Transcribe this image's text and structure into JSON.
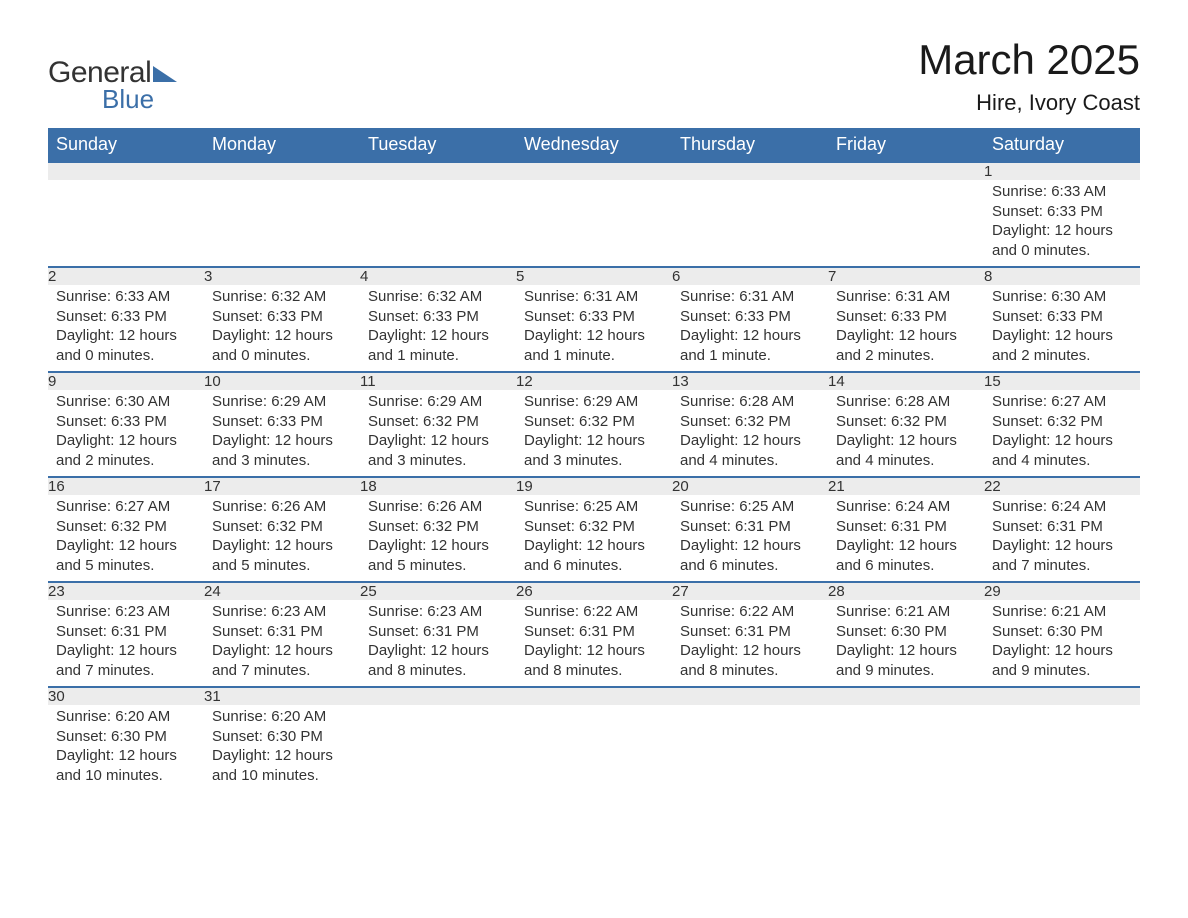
{
  "logo": {
    "word1": "General",
    "word2": "Blue",
    "text_color": "#333333",
    "accent_color": "#3b6fa8"
  },
  "title": "March 2025",
  "location": "Hire, Ivory Coast",
  "colors": {
    "header_bg": "#3b6fa8",
    "header_text": "#ffffff",
    "daynum_bg": "#ececec",
    "daynum_border": "#3b6fa8",
    "body_text": "#333333",
    "page_bg": "#ffffff"
  },
  "typography": {
    "title_fontsize": 42,
    "location_fontsize": 22,
    "header_fontsize": 18,
    "daynum_fontsize": 18,
    "body_fontsize": 15
  },
  "columns": [
    "Sunday",
    "Monday",
    "Tuesday",
    "Wednesday",
    "Thursday",
    "Friday",
    "Saturday"
  ],
  "weeks": [
    [
      null,
      null,
      null,
      null,
      null,
      null,
      {
        "n": "1",
        "sunrise": "6:33 AM",
        "sunset": "6:33 PM",
        "daylight": "12 hours and 0 minutes."
      }
    ],
    [
      {
        "n": "2",
        "sunrise": "6:33 AM",
        "sunset": "6:33 PM",
        "daylight": "12 hours and 0 minutes."
      },
      {
        "n": "3",
        "sunrise": "6:32 AM",
        "sunset": "6:33 PM",
        "daylight": "12 hours and 0 minutes."
      },
      {
        "n": "4",
        "sunrise": "6:32 AM",
        "sunset": "6:33 PM",
        "daylight": "12 hours and 1 minute."
      },
      {
        "n": "5",
        "sunrise": "6:31 AM",
        "sunset": "6:33 PM",
        "daylight": "12 hours and 1 minute."
      },
      {
        "n": "6",
        "sunrise": "6:31 AM",
        "sunset": "6:33 PM",
        "daylight": "12 hours and 1 minute."
      },
      {
        "n": "7",
        "sunrise": "6:31 AM",
        "sunset": "6:33 PM",
        "daylight": "12 hours and 2 minutes."
      },
      {
        "n": "8",
        "sunrise": "6:30 AM",
        "sunset": "6:33 PM",
        "daylight": "12 hours and 2 minutes."
      }
    ],
    [
      {
        "n": "9",
        "sunrise": "6:30 AM",
        "sunset": "6:33 PM",
        "daylight": "12 hours and 2 minutes."
      },
      {
        "n": "10",
        "sunrise": "6:29 AM",
        "sunset": "6:33 PM",
        "daylight": "12 hours and 3 minutes."
      },
      {
        "n": "11",
        "sunrise": "6:29 AM",
        "sunset": "6:32 PM",
        "daylight": "12 hours and 3 minutes."
      },
      {
        "n": "12",
        "sunrise": "6:29 AM",
        "sunset": "6:32 PM",
        "daylight": "12 hours and 3 minutes."
      },
      {
        "n": "13",
        "sunrise": "6:28 AM",
        "sunset": "6:32 PM",
        "daylight": "12 hours and 4 minutes."
      },
      {
        "n": "14",
        "sunrise": "6:28 AM",
        "sunset": "6:32 PM",
        "daylight": "12 hours and 4 minutes."
      },
      {
        "n": "15",
        "sunrise": "6:27 AM",
        "sunset": "6:32 PM",
        "daylight": "12 hours and 4 minutes."
      }
    ],
    [
      {
        "n": "16",
        "sunrise": "6:27 AM",
        "sunset": "6:32 PM",
        "daylight": "12 hours and 5 minutes."
      },
      {
        "n": "17",
        "sunrise": "6:26 AM",
        "sunset": "6:32 PM",
        "daylight": "12 hours and 5 minutes."
      },
      {
        "n": "18",
        "sunrise": "6:26 AM",
        "sunset": "6:32 PM",
        "daylight": "12 hours and 5 minutes."
      },
      {
        "n": "19",
        "sunrise": "6:25 AM",
        "sunset": "6:32 PM",
        "daylight": "12 hours and 6 minutes."
      },
      {
        "n": "20",
        "sunrise": "6:25 AM",
        "sunset": "6:31 PM",
        "daylight": "12 hours and 6 minutes."
      },
      {
        "n": "21",
        "sunrise": "6:24 AM",
        "sunset": "6:31 PM",
        "daylight": "12 hours and 6 minutes."
      },
      {
        "n": "22",
        "sunrise": "6:24 AM",
        "sunset": "6:31 PM",
        "daylight": "12 hours and 7 minutes."
      }
    ],
    [
      {
        "n": "23",
        "sunrise": "6:23 AM",
        "sunset": "6:31 PM",
        "daylight": "12 hours and 7 minutes."
      },
      {
        "n": "24",
        "sunrise": "6:23 AM",
        "sunset": "6:31 PM",
        "daylight": "12 hours and 7 minutes."
      },
      {
        "n": "25",
        "sunrise": "6:23 AM",
        "sunset": "6:31 PM",
        "daylight": "12 hours and 8 minutes."
      },
      {
        "n": "26",
        "sunrise": "6:22 AM",
        "sunset": "6:31 PM",
        "daylight": "12 hours and 8 minutes."
      },
      {
        "n": "27",
        "sunrise": "6:22 AM",
        "sunset": "6:31 PM",
        "daylight": "12 hours and 8 minutes."
      },
      {
        "n": "28",
        "sunrise": "6:21 AM",
        "sunset": "6:30 PM",
        "daylight": "12 hours and 9 minutes."
      },
      {
        "n": "29",
        "sunrise": "6:21 AM",
        "sunset": "6:30 PM",
        "daylight": "12 hours and 9 minutes."
      }
    ],
    [
      {
        "n": "30",
        "sunrise": "6:20 AM",
        "sunset": "6:30 PM",
        "daylight": "12 hours and 10 minutes."
      },
      {
        "n": "31",
        "sunrise": "6:20 AM",
        "sunset": "6:30 PM",
        "daylight": "12 hours and 10 minutes."
      },
      null,
      null,
      null,
      null,
      null
    ]
  ],
  "labels": {
    "sunrise": "Sunrise:",
    "sunset": "Sunset:",
    "daylight": "Daylight:"
  }
}
